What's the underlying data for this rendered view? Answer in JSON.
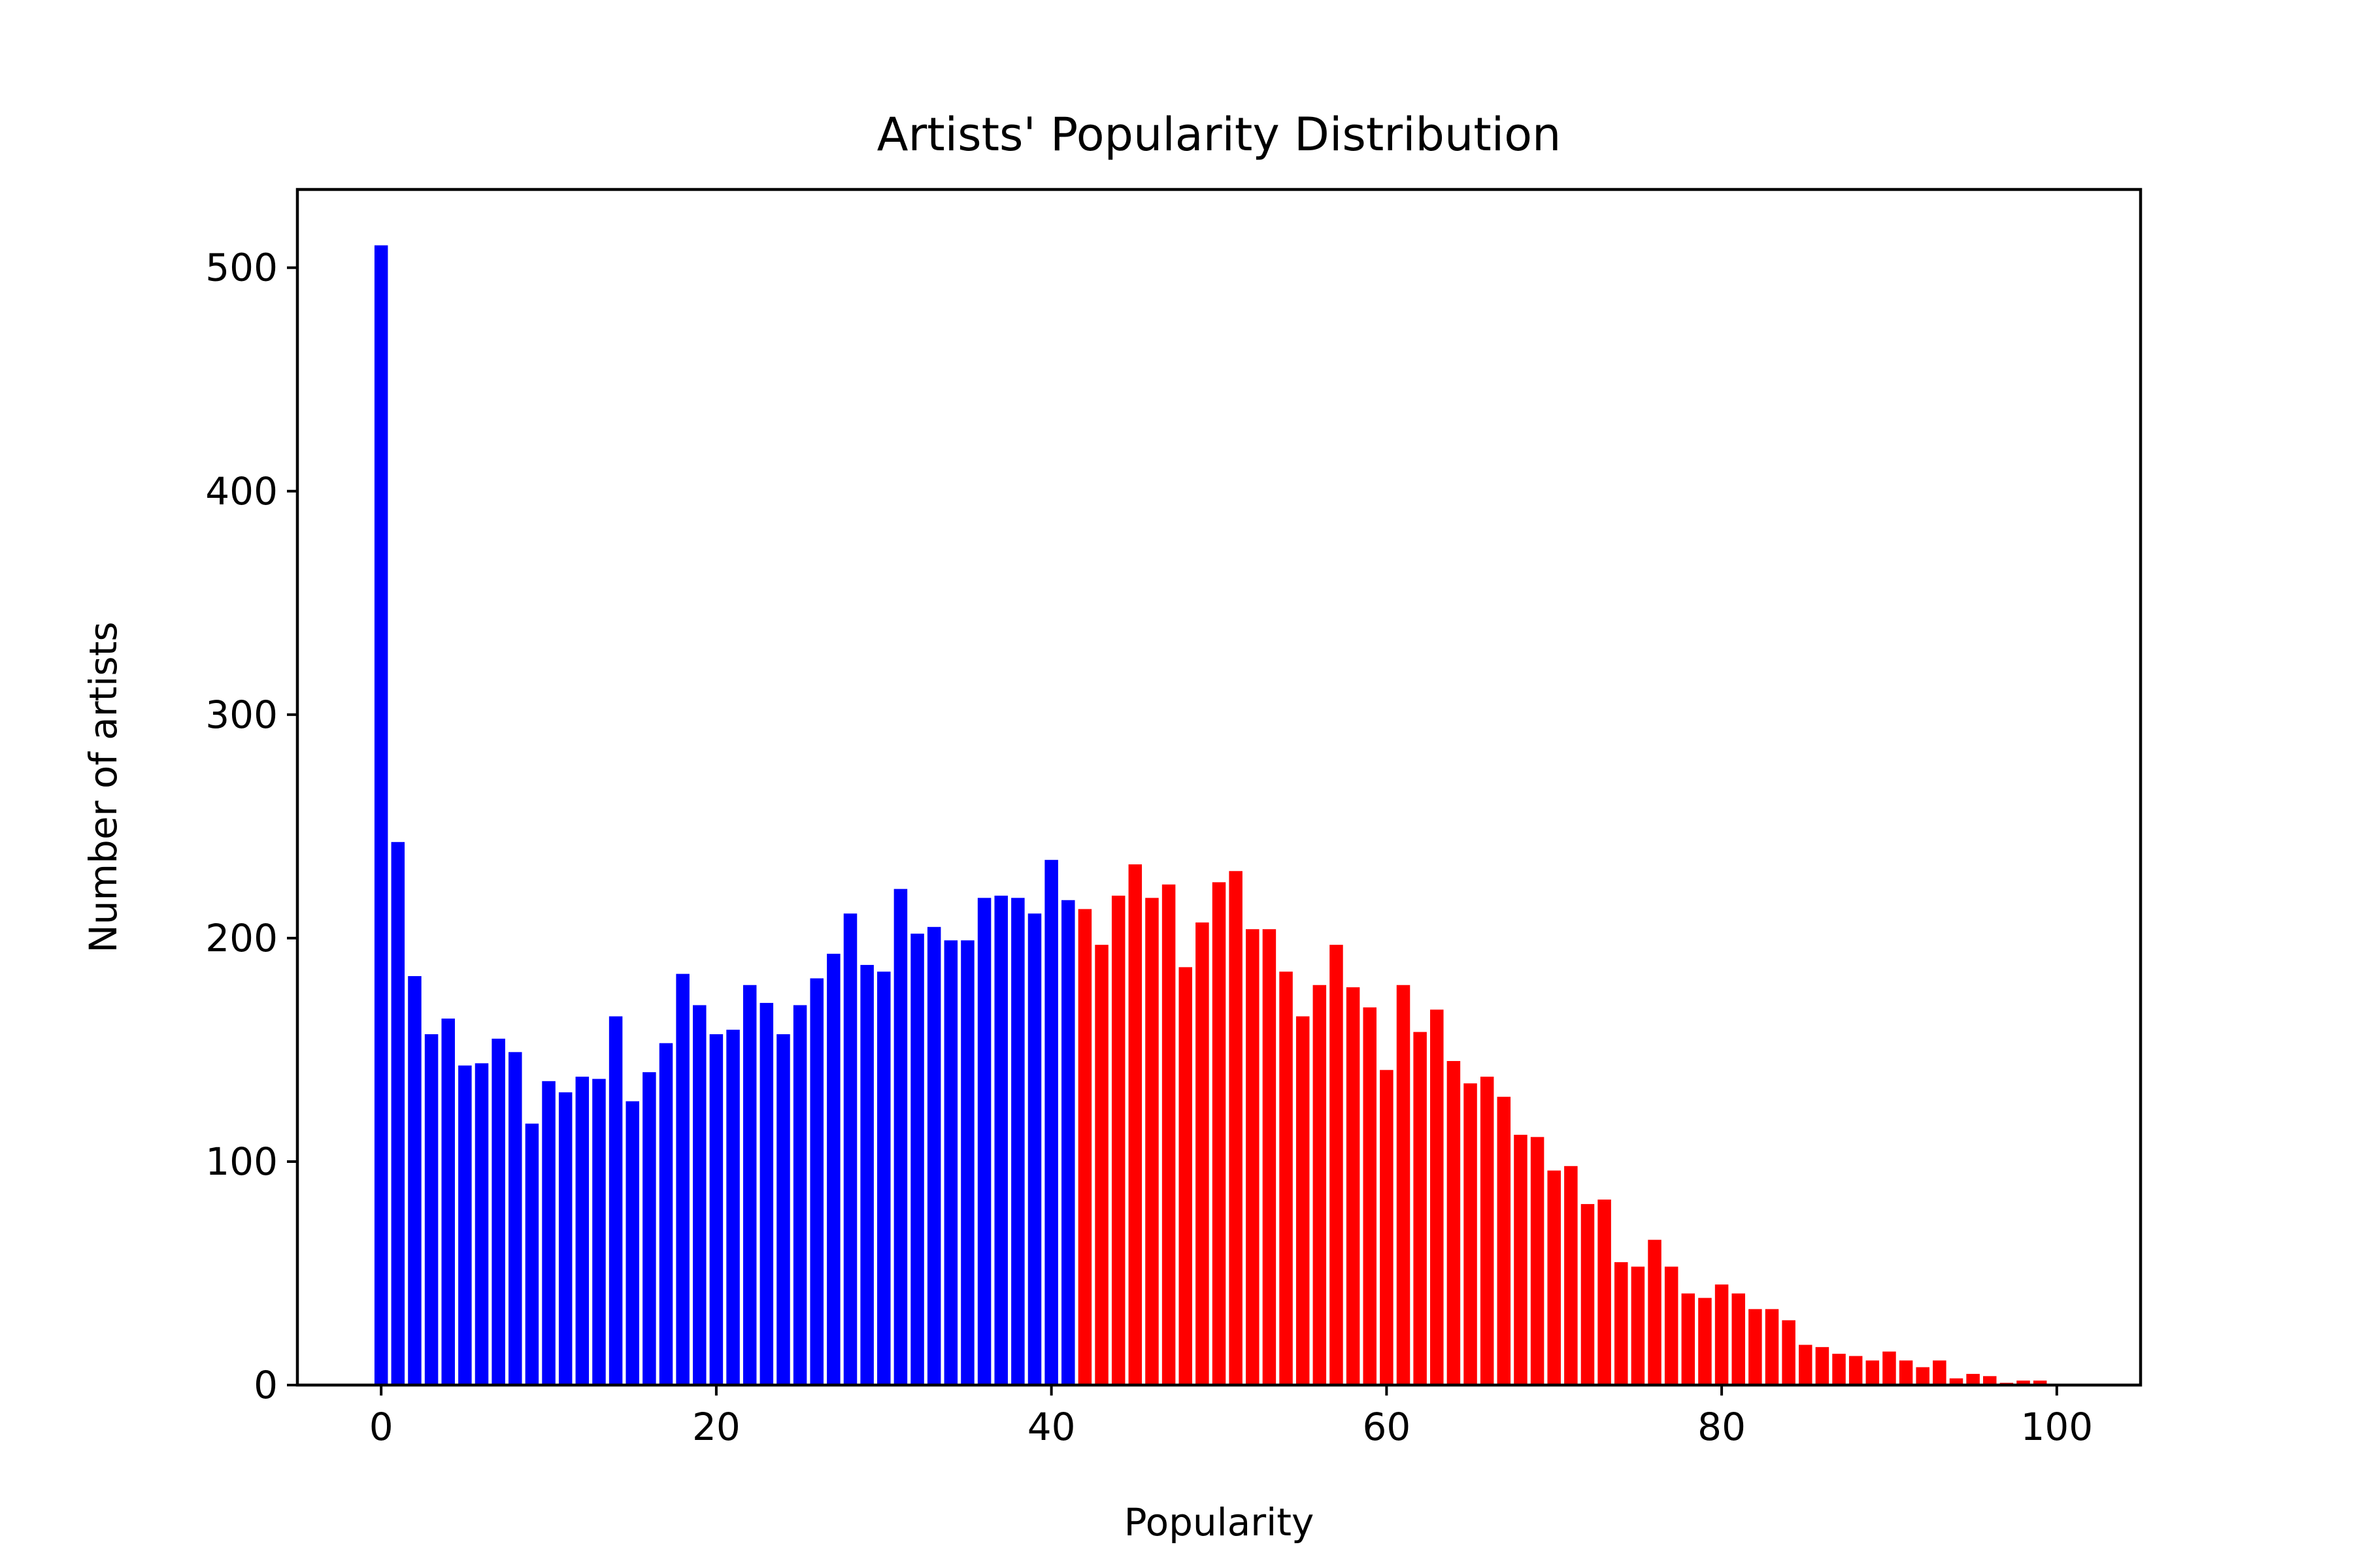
{
  "chart_data": {
    "type": "bar",
    "title": "Artists' Popularity Distribution",
    "xlabel": "Popularity",
    "ylabel": "Number of artists",
    "xlim": [
      -5,
      105
    ],
    "ylim": [
      0,
      535
    ],
    "x_ticks": [
      0,
      20,
      40,
      60,
      80,
      100
    ],
    "y_ticks": [
      0,
      100,
      200,
      300,
      400,
      500
    ],
    "grid": false,
    "colors": {
      "low": "#0000ff",
      "high": "#ff0000",
      "split_after": 41
    },
    "x": [
      0,
      1,
      2,
      3,
      4,
      5,
      6,
      7,
      8,
      9,
      10,
      11,
      12,
      13,
      14,
      15,
      16,
      17,
      18,
      19,
      20,
      21,
      22,
      23,
      24,
      25,
      26,
      27,
      28,
      29,
      30,
      31,
      32,
      33,
      34,
      35,
      36,
      37,
      38,
      39,
      40,
      41,
      42,
      43,
      44,
      45,
      46,
      47,
      48,
      49,
      50,
      51,
      52,
      53,
      54,
      55,
      56,
      57,
      58,
      59,
      60,
      61,
      62,
      63,
      64,
      65,
      66,
      67,
      68,
      69,
      70,
      71,
      72,
      73,
      74,
      75,
      76,
      77,
      78,
      79,
      80,
      81,
      82,
      83,
      84,
      85,
      86,
      87,
      88,
      89,
      90,
      91,
      92,
      93,
      94,
      95,
      96,
      97,
      98,
      99
    ],
    "values": [
      510,
      243,
      183,
      157,
      164,
      143,
      144,
      155,
      149,
      117,
      136,
      131,
      138,
      137,
      165,
      127,
      140,
      153,
      184,
      170,
      157,
      159,
      179,
      171,
      157,
      170,
      182,
      193,
      211,
      188,
      185,
      222,
      202,
      205,
      199,
      199,
      218,
      219,
      218,
      211,
      235,
      217,
      213,
      197,
      219,
      233,
      218,
      224,
      187,
      207,
      225,
      230,
      204,
      204,
      185,
      165,
      179,
      197,
      178,
      169,
      141,
      179,
      158,
      168,
      145,
      135,
      138,
      129,
      112,
      111,
      96,
      98,
      81,
      83,
      55,
      53,
      65,
      53,
      41,
      39,
      45,
      41,
      34,
      34,
      29,
      18,
      17,
      14,
      13,
      11,
      15,
      11,
      8,
      11,
      3,
      5,
      4,
      1,
      2,
      2
    ]
  }
}
